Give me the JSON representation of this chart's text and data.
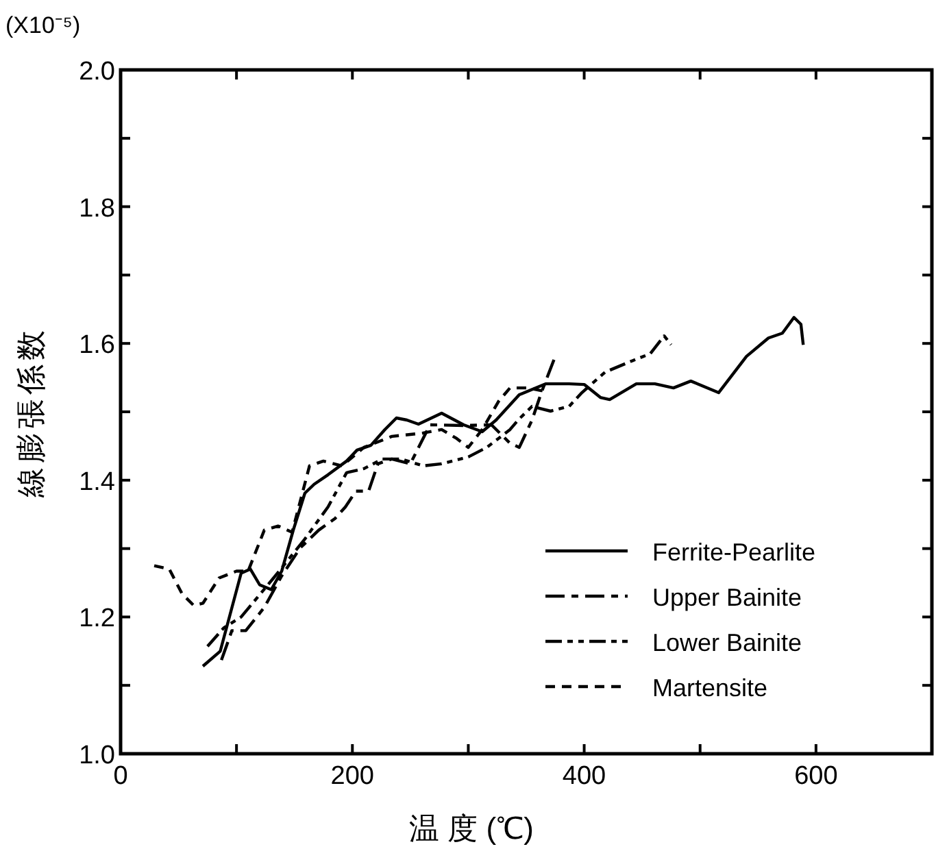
{
  "chart_data": {
    "type": "line",
    "xlabel": "温 度 (℃)",
    "ylabel": "線膨張係数",
    "annotations": [
      "(X10⁻⁵)"
    ],
    "xlim": [
      0,
      700
    ],
    "ylim": [
      1.0,
      2.0
    ],
    "xticks": [
      0,
      {
        "value": 100,
        "label": null
      },
      200,
      {
        "value": 300,
        "label": null
      },
      400,
      {
        "value": 500,
        "label": null
      },
      600
    ],
    "yticks": [
      {
        "value": 1.0,
        "label": "1.0"
      },
      {
        "value": 1.1,
        "label": null
      },
      1.2,
      {
        "value": 1.3,
        "label": null
      },
      1.4,
      {
        "value": 1.5,
        "label": null
      },
      1.6,
      {
        "value": 1.7,
        "label": null
      },
      1.8,
      {
        "value": 1.9,
        "label": null
      },
      {
        "value": 2.0,
        "label": "2.0"
      }
    ],
    "legend": "bottom right",
    "series": [
      {
        "name": "Ferrite-Pearlite",
        "color": "#000000",
        "line_style": "solid",
        "x": [
          71,
          86,
          104,
          112,
          120,
          130,
          139,
          149,
          159,
          167,
          179,
          195,
          204,
          216,
          228,
          238,
          247,
          257,
          277,
          296,
          312,
          324,
          344,
          367,
          387,
          400,
          414,
          422,
          445,
          461,
          477,
          492,
          516,
          540,
          559,
          571,
          581,
          587,
          589
        ],
        "values": [
          1.128,
          1.15,
          1.264,
          1.27,
          1.247,
          1.24,
          1.267,
          1.327,
          1.381,
          1.394,
          1.408,
          1.428,
          1.444,
          1.451,
          1.474,
          1.491,
          1.488,
          1.482,
          1.498,
          1.481,
          1.471,
          1.488,
          1.525,
          1.541,
          1.541,
          1.54,
          1.521,
          1.518,
          1.541,
          1.541,
          1.535,
          1.545,
          1.528,
          1.581,
          1.608,
          1.615,
          1.638,
          1.628,
          1.598
        ]
      },
      {
        "name": "Upper Bainite",
        "color": "#000000",
        "line_style": "dashdot",
        "x": [
          87,
          96,
          108,
          124,
          139,
          155,
          171,
          185,
          194,
          203,
          214,
          222,
          234,
          250,
          261,
          267,
          296,
          320,
          336,
          344,
          355,
          363,
          375
        ],
        "values": [
          1.137,
          1.18,
          1.18,
          1.214,
          1.26,
          1.301,
          1.327,
          1.344,
          1.361,
          1.384,
          1.384,
          1.424,
          1.431,
          1.424,
          1.461,
          1.481,
          1.48,
          1.481,
          1.454,
          1.448,
          1.488,
          1.528,
          1.581
        ]
      },
      {
        "name": "Lower Bainite",
        "color": "#000000",
        "line_style": "dashdotdot",
        "x": [
          75,
          89,
          104,
          132,
          159,
          179,
          195,
          210,
          226,
          242,
          261,
          277,
          300,
          316,
          336,
          343,
          355,
          371,
          387,
          398,
          418,
          442,
          457,
          469,
          475
        ],
        "values": [
          1.157,
          1.184,
          1.2,
          1.257,
          1.314,
          1.361,
          1.411,
          1.417,
          1.431,
          1.431,
          1.421,
          1.424,
          1.434,
          1.448,
          1.474,
          1.488,
          1.508,
          1.501,
          1.508,
          1.528,
          1.558,
          1.575,
          1.585,
          1.611,
          1.598
        ]
      },
      {
        "name": "Martensite",
        "color": "#000000",
        "line_style": "dashed",
        "x": [
          29,
          42,
          53,
          63,
          71,
          85,
          100,
          110,
          124,
          136,
          148,
          163,
          175,
          191,
          210,
          234,
          261,
          277,
          290,
          300,
          312,
          326,
          336,
          351,
          363,
          367
        ],
        "values": [
          1.275,
          1.27,
          1.234,
          1.217,
          1.22,
          1.257,
          1.267,
          1.267,
          1.327,
          1.333,
          1.324,
          1.421,
          1.428,
          1.421,
          1.448,
          1.464,
          1.469,
          1.474,
          1.461,
          1.448,
          1.474,
          1.515,
          1.535,
          1.535,
          1.531,
          1.531
        ]
      }
    ]
  }
}
